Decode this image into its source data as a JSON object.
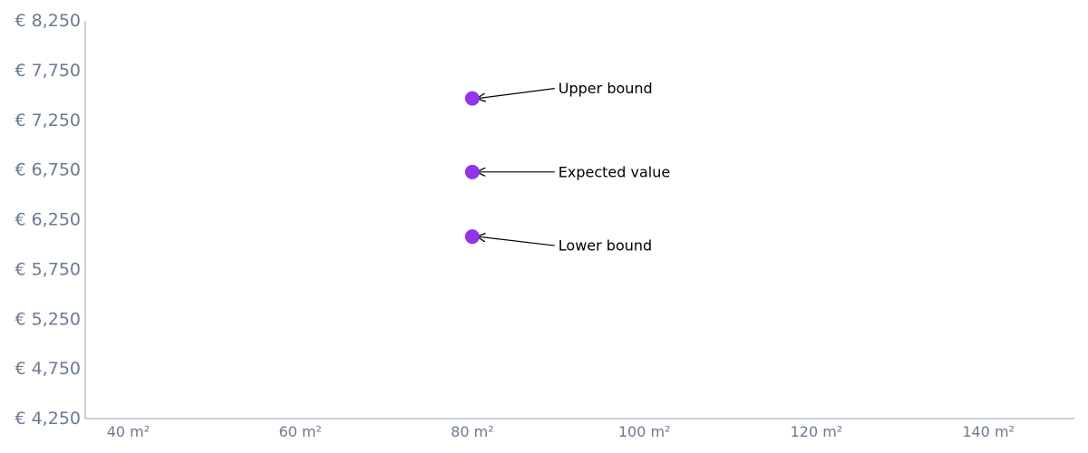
{
  "chart_data": {
    "type": "scatter",
    "title": "",
    "xlabel": "",
    "ylabel": "",
    "x_unit_suffix": " m²",
    "y_currency_prefix": "€ ",
    "xlim": [
      35,
      150
    ],
    "ylim": [
      4250,
      8250
    ],
    "x_ticks": [
      40,
      60,
      80,
      100,
      120,
      140
    ],
    "y_ticks": [
      4250,
      4750,
      5250,
      5750,
      6250,
      6750,
      7250,
      7750,
      8250
    ],
    "x_tick_labels": [
      "40 m²",
      "60 m²",
      "80 m²",
      "100 m²",
      "120 m²",
      "140 m²"
    ],
    "y_tick_labels": [
      "€ 4,250",
      "€ 4,750",
      "€ 5,250",
      "€ 5,750",
      "€ 6,250",
      "€ 6,750",
      "€ 7,250",
      "€ 7,750",
      "€ 8,250"
    ],
    "grid": false,
    "point_color": "#9333ea",
    "axis_color": "#a0a7b1",
    "tick_label_color": "#6b7a8f",
    "points": [
      {
        "x": 80,
        "y": 7470,
        "label": "Upper bound",
        "label_x": 90,
        "label_y": 7570
      },
      {
        "x": 80,
        "y": 6730,
        "label": "Expected value",
        "label_x": 90,
        "label_y": 6730
      },
      {
        "x": 80,
        "y": 6080,
        "label": "Lower bound",
        "label_x": 90,
        "label_y": 5990
      }
    ]
  }
}
